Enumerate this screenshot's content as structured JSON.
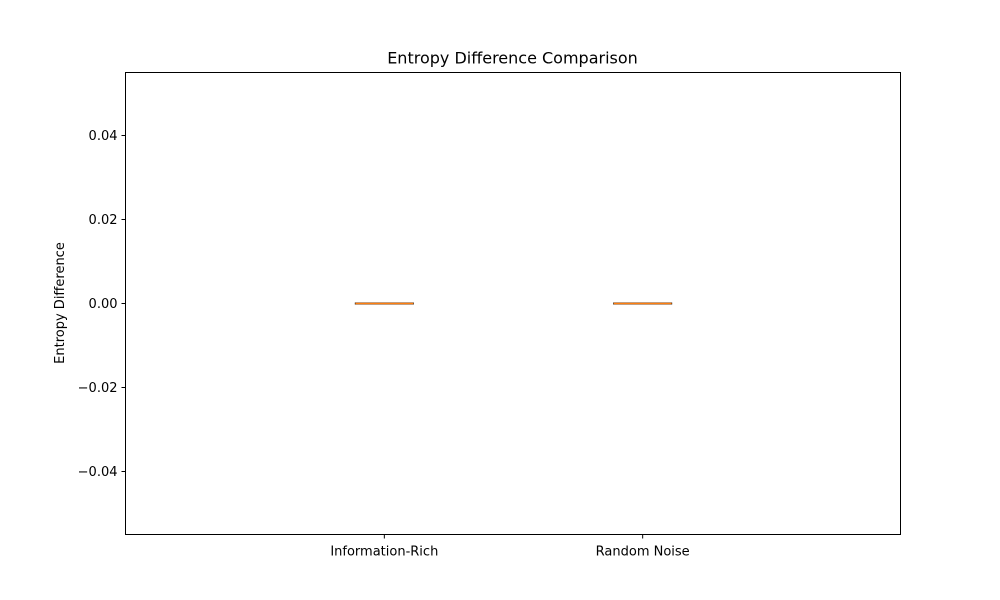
{
  "chart_data": {
    "type": "box",
    "title": "Entropy Difference Comparison",
    "xlabel": "",
    "ylabel": "Entropy Difference",
    "categories": [
      "Information-Rich",
      "Random Noise"
    ],
    "ylim": [
      -0.055,
      0.055
    ],
    "yticks": [
      -0.04,
      -0.02,
      0.0,
      0.02,
      0.04
    ],
    "ytick_labels": [
      "−0.04",
      "−0.02",
      "0.00",
      "0.02",
      "0.04"
    ],
    "boxes": [
      {
        "category": "Information-Rich",
        "min": 0.0,
        "q1": 0.0,
        "median": 0.0,
        "q3": 0.0,
        "max": 0.0
      },
      {
        "category": "Random Noise",
        "min": 0.0,
        "q1": 0.0,
        "median": 0.0,
        "q3": 0.0,
        "max": 0.0
      }
    ],
    "grid": false,
    "colors": {
      "box": "#000000",
      "median": "#ff7f0e",
      "axes": "#000000"
    }
  }
}
